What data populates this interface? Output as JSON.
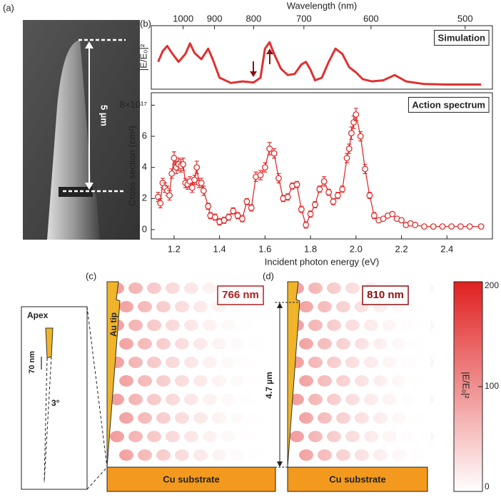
{
  "panel_labels": {
    "a": "(a)",
    "b": "(b)",
    "c": "(c)",
    "d": "(d)"
  },
  "sem": {
    "scale": "5 µm"
  },
  "chart_data": [
    {
      "type": "line",
      "x2label": "Wavelength (nm)",
      "x2ticks": [
        {
          "value": 1.24,
          "label": "1000"
        },
        {
          "value": 1.378,
          "label": "900"
        },
        {
          "value": 1.55,
          "label": "800"
        },
        {
          "value": 1.771,
          "label": "700"
        },
        {
          "value": 2.066,
          "label": "600"
        },
        {
          "value": 2.48,
          "label": "500"
        }
      ],
      "ylabel": "|E/E₀|²",
      "annotation": "Simulation",
      "color": "#e03030",
      "x": [
        1.13,
        1.15,
        1.17,
        1.19,
        1.22,
        1.25,
        1.27,
        1.29,
        1.32,
        1.35,
        1.37,
        1.4,
        1.45,
        1.5,
        1.55,
        1.58,
        1.6,
        1.62,
        1.64,
        1.67,
        1.7,
        1.73,
        1.76,
        1.78,
        1.8,
        1.82,
        1.85,
        1.88,
        1.91,
        1.94,
        1.97,
        2.0,
        2.03,
        2.07,
        2.12,
        2.17,
        2.22,
        2.3,
        2.4,
        2.55
      ],
      "values": [
        0.45,
        0.65,
        0.75,
        0.62,
        0.45,
        0.6,
        0.8,
        0.62,
        0.5,
        0.7,
        0.5,
        0.15,
        0.05,
        0.08,
        0.06,
        0.15,
        0.7,
        0.82,
        0.6,
        0.32,
        0.2,
        0.22,
        0.4,
        0.45,
        0.3,
        0.1,
        0.15,
        0.45,
        0.7,
        0.6,
        0.35,
        0.25,
        0.12,
        0.08,
        0.1,
        0.2,
        0.08,
        0.03,
        0.02,
        0.02
      ],
      "xlim": [
        1.1,
        2.6
      ],
      "ylim": [
        0,
        1
      ]
    },
    {
      "type": "scatter",
      "annotation": "Action spectrum",
      "xlabel": "Incident photon energy (eV)",
      "ylabel": "Cross section (cm²)",
      "color": "#e03030",
      "x": [
        1.13,
        1.14,
        1.15,
        1.16,
        1.17,
        1.18,
        1.19,
        1.2,
        1.21,
        1.22,
        1.23,
        1.24,
        1.25,
        1.26,
        1.27,
        1.28,
        1.29,
        1.3,
        1.31,
        1.32,
        1.33,
        1.35,
        1.36,
        1.38,
        1.4,
        1.42,
        1.44,
        1.46,
        1.48,
        1.5,
        1.52,
        1.54,
        1.56,
        1.58,
        1.6,
        1.62,
        1.64,
        1.66,
        1.68,
        1.7,
        1.72,
        1.74,
        1.76,
        1.78,
        1.8,
        1.82,
        1.84,
        1.86,
        1.88,
        1.9,
        1.92,
        1.94,
        1.96,
        1.97,
        1.98,
        1.99,
        2.0,
        2.02,
        2.04,
        2.06,
        2.08,
        2.1,
        2.12,
        2.14,
        2.16,
        2.18,
        2.2,
        2.22,
        2.24,
        2.26,
        2.3,
        2.34,
        2.38,
        2.42,
        2.46,
        2.5,
        2.55
      ],
      "values": [
        2.1,
        1.7,
        3.0,
        2.7,
        2.5,
        2.2,
        3.6,
        4.6,
        4.0,
        4.2,
        4.1,
        4.2,
        3.0,
        2.9,
        3.1,
        2.7,
        3.2,
        4.0,
        3.0,
        3.0,
        2.5,
        1.5,
        0.9,
        0.8,
        0.5,
        0.6,
        0.8,
        1.2,
        0.9,
        0.7,
        1.8,
        1.4,
        3.4,
        3.5,
        4.0,
        5.2,
        4.9,
        3.3,
        2.0,
        2.1,
        2.8,
        2.9,
        1.3,
        0.3,
        1.0,
        1.6,
        2.6,
        3.1,
        2.4,
        1.8,
        2.2,
        2.6,
        4.6,
        5.2,
        6.2,
        6.9,
        7.4,
        6.0,
        3.9,
        2.2,
        0.9,
        0.6,
        0.7,
        0.9,
        1.0,
        0.7,
        0.6,
        0.3,
        0.4,
        0.3,
        0.2,
        0.2,
        0.2,
        0.2,
        0.2,
        0.2,
        0.2
      ],
      "errors": [
        0.3,
        0.3,
        0.3,
        0.3,
        0.3,
        0.3,
        0.3,
        0.4,
        0.4,
        0.4,
        0.4,
        0.4,
        0.3,
        0.3,
        0.3,
        0.3,
        0.3,
        0.4,
        0.3,
        0.3,
        0.3,
        0.2,
        0.2,
        0.2,
        0.2,
        0.2,
        0.2,
        0.2,
        0.2,
        0.2,
        0.2,
        0.2,
        0.3,
        0.3,
        0.3,
        0.4,
        0.3,
        0.3,
        0.2,
        0.2,
        0.2,
        0.2,
        0.2,
        0.2,
        0.2,
        0.2,
        0.2,
        0.3,
        0.2,
        0.2,
        0.2,
        0.2,
        0.3,
        0.3,
        0.4,
        0.4,
        0.4,
        0.3,
        0.3,
        0.2,
        0.2,
        0.1,
        0.1,
        0.1,
        0.1,
        0.1,
        0.1,
        0.1,
        0.1,
        0.1,
        0.1,
        0.1,
        0.1,
        0.1,
        0.1,
        0.1,
        0.1
      ],
      "xlim": [
        1.1,
        2.6
      ],
      "ylim": [
        -0.6,
        8.8
      ],
      "xticks": [
        1.2,
        1.4,
        1.6,
        1.8,
        {
          "value": 2,
          "label": "2.0"
        },
        2.2,
        2.4
      ],
      "yticks": [
        0,
        2,
        4,
        6,
        {
          "value": 8,
          "label": "8×10¹⁷"
        }
      ]
    }
  ],
  "field_maps": [
    {
      "wavelength": "766 nm",
      "tip": "Au tip",
      "substrate": "Cu substrate"
    },
    {
      "wavelength": "810 nm",
      "height": "4.7 µm",
      "substrate": "Cu substrate"
    }
  ],
  "inset": {
    "title": "Apex",
    "gap": "70 nm",
    "angle": "3°"
  },
  "colorbar": {
    "label": "|E/E₀|²",
    "lim": [
      0,
      200
    ],
    "ticks": [
      0,
      100,
      200
    ],
    "color": "#e02020"
  }
}
